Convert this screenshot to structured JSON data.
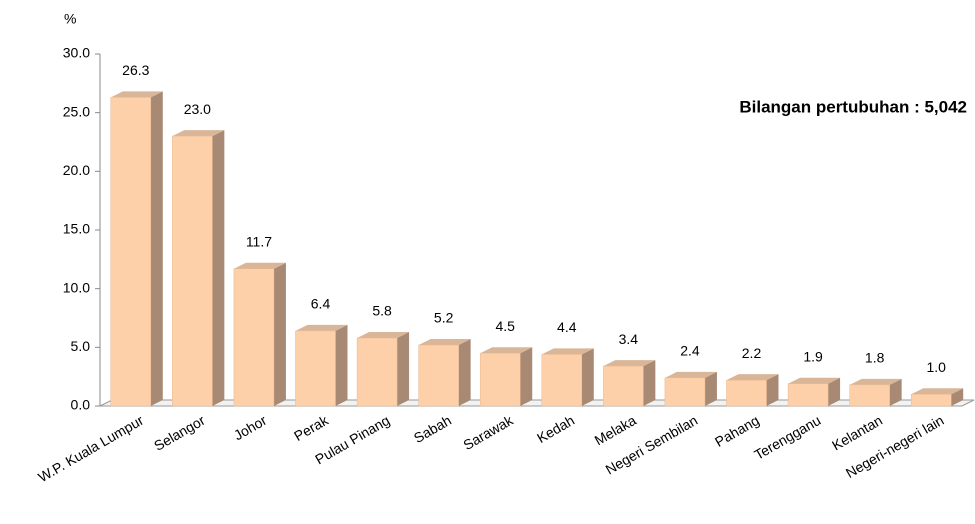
{
  "chart_data": {
    "type": "bar3d",
    "y_label": "%",
    "annotation": "Bilangan pertubuhan : 5,042",
    "categories": [
      "W.P. Kuala Lumpur",
      "Selangor",
      "Johor",
      "Perak",
      "Pulau Pinang",
      "Sabah",
      "Sarawak",
      "Kedah",
      "Melaka",
      "Negeri Sembilan",
      "Pahang",
      "Terengganu",
      "Kelantan",
      "Negeri-negeri lain"
    ],
    "values": [
      26.3,
      23.0,
      11.7,
      6.4,
      5.8,
      5.2,
      4.5,
      4.4,
      3.4,
      2.4,
      2.2,
      1.9,
      1.8,
      1.0
    ],
    "value_labels": [
      "26.3",
      "23.0",
      "11.7",
      "6.4",
      "5.8",
      "5.2",
      "4.5",
      "4.4",
      "3.4",
      "2.4",
      "2.2",
      "1.9",
      "1.8",
      "1.0"
    ],
    "color": "#fdd0aa",
    "side_color": "#a88a74",
    "top_color": "#d9b698",
    "ylim": [
      0,
      30
    ],
    "yticks": [
      {
        "value": 0,
        "label": "0.0"
      },
      {
        "value": 5,
        "label": "5.0"
      },
      {
        "value": 10,
        "label": "10.0"
      },
      {
        "value": 15,
        "label": "15.0"
      },
      {
        "value": 20,
        "label": "20.0"
      },
      {
        "value": 25,
        "label": "25.0"
      },
      {
        "value": 30,
        "label": "30.0"
      }
    ],
    "grid": false
  }
}
